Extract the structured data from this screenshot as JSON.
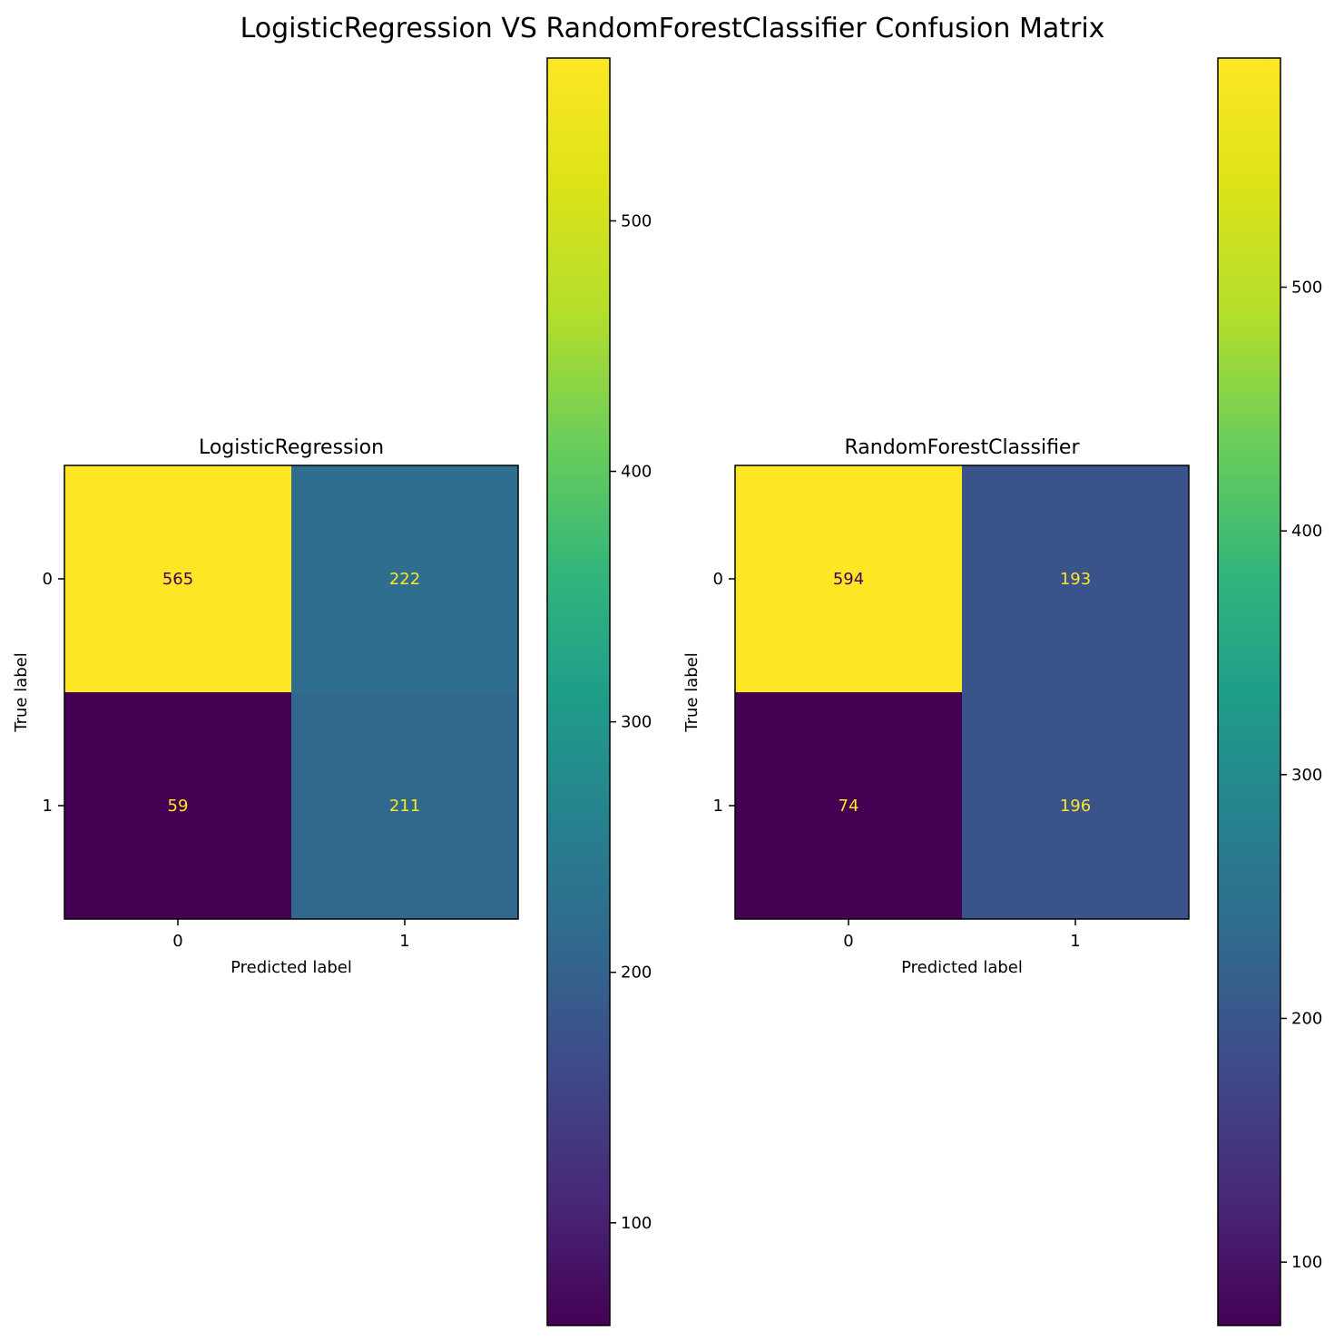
{
  "figure": {
    "title": "LogisticRegression VS RandomForestClassifier Confusion Matrix"
  },
  "chart_data": [
    {
      "type": "heatmap",
      "title": "LogisticRegression",
      "xlabel": "Predicted label",
      "ylabel": "True label",
      "x_categories": [
        "0",
        "1"
      ],
      "y_categories": [
        "0",
        "1"
      ],
      "values": [
        [
          565,
          222
        ],
        [
          59,
          211
        ]
      ],
      "colormap": "viridis",
      "colorbar": {
        "vmin": 59,
        "vmax": 565,
        "ticks": [
          100,
          200,
          300,
          400,
          500
        ]
      },
      "grid": false
    },
    {
      "type": "heatmap",
      "title": "RandomForestClassifier",
      "xlabel": "Predicted label",
      "ylabel": "True label",
      "x_categories": [
        "0",
        "1"
      ],
      "y_categories": [
        "0",
        "1"
      ],
      "values": [
        [
          594,
          193
        ],
        [
          74,
          196
        ]
      ],
      "colormap": "viridis",
      "colorbar": {
        "vmin": 74,
        "vmax": 594,
        "ticks": [
          100,
          200,
          300,
          400,
          500
        ]
      },
      "grid": false
    }
  ],
  "colors": {
    "low_text": "#fde725",
    "high_text": "#440154"
  }
}
